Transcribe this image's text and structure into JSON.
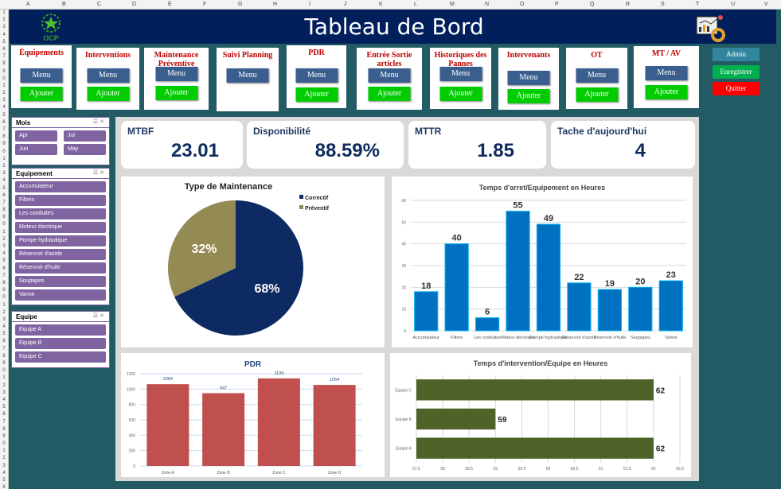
{
  "sheet": {
    "columns": [
      "A",
      "B",
      "C",
      "D",
      "E",
      "F",
      "G",
      "H",
      "I",
      "J",
      "K",
      "L",
      "M",
      "N",
      "O",
      "P",
      "Q",
      "R",
      "S",
      "T",
      "U",
      "V"
    ]
  },
  "header": {
    "title": "Tableau de Bord",
    "logo_text": "OCP",
    "logo_icon": "ocp-star-logo",
    "dashboard_icon": "dashboard-chart-icon"
  },
  "nav": [
    {
      "title": "Équipements",
      "menu": "Menu",
      "add": "Ajouter"
    },
    {
      "title": "Interventions",
      "menu": "Menu",
      "add": "Ajouter"
    },
    {
      "title": "Maintenance Préventive",
      "menu": "Menu",
      "add": "Ajouter"
    },
    {
      "title": "Suivi Planning",
      "menu": "Menu"
    },
    {
      "title": "PDR",
      "menu": "Menu",
      "add": "Ajouter"
    },
    {
      "title": "Entrée Sortie articles",
      "menu": "Menu",
      "add": "Ajouter"
    },
    {
      "title": "Historiques des Pannes",
      "menu": "Menu",
      "add": "Ajouter"
    },
    {
      "title": "Intervenants",
      "menu": "Menu",
      "add": "Ajouter"
    },
    {
      "title": "OT",
      "menu": "Menu",
      "add": "Ajouter"
    },
    {
      "title": "MT / AV",
      "menu": "Menu",
      "add": "Ajouter"
    }
  ],
  "side_buttons": {
    "admin": "Admin",
    "save": "Enregistrer",
    "quit": "Quitter",
    "colors": {
      "admin": "#31859c",
      "save": "#00b050",
      "quit": "#ff0000"
    }
  },
  "slicers": {
    "mois": {
      "title": "Mois",
      "items": [
        "Apr",
        "Jul",
        "Jun",
        "May"
      ]
    },
    "equipement": {
      "title": "Equipement",
      "items": [
        "Accumulateur",
        "Filtres",
        "Les conduites",
        "Moteur électrique",
        "Pompe hydraulique",
        "Réservoir d'azote",
        "Réservoir d'huile",
        "Soupapes",
        "Vanne"
      ]
    },
    "equipe": {
      "title": "Equipe",
      "items": [
        "Equipe A",
        "Equipe B",
        "Equipe C"
      ]
    }
  },
  "kpis": [
    {
      "label": "MTBF",
      "value": "23.01"
    },
    {
      "label": "Disponibilité",
      "value": "88.59%"
    },
    {
      "label": "MTTR",
      "value": "1.85"
    },
    {
      "label": "Tache d'aujourd'hui",
      "value": "4"
    }
  ],
  "chart_data": [
    {
      "type": "pie",
      "title": "Type de Maintenance",
      "categories": [
        "Correctif",
        "Préventif"
      ],
      "values": [
        68,
        32
      ],
      "labels": [
        "68%",
        "32%"
      ],
      "colors": [
        "#0e2a63",
        "#948a54"
      ],
      "legend": "top-right"
    },
    {
      "type": "bar",
      "title": "Temps d'arret/Equipement en Heures",
      "categories": [
        "Accumulateur",
        "Filtres",
        "Les conduites",
        "Moteur électrique",
        "Pompe hydraulique",
        "Réservoir d'azote",
        "Réservoir d'huile",
        "Soupapes",
        "Vanne"
      ],
      "values": [
        18,
        40,
        6,
        55,
        49,
        22,
        19,
        20,
        23
      ],
      "ylim": [
        0,
        60
      ],
      "yticks": [
        0,
        10,
        20,
        30,
        40,
        50,
        60
      ],
      "color": "#0070c0",
      "grid": true
    },
    {
      "type": "bar",
      "title": "PDR",
      "categories": [
        "Zone A",
        "Zone B",
        "Zone C",
        "Zone D"
      ],
      "values": [
        1064,
        947,
        1139,
        1054
      ],
      "ylim": [
        0,
        1200
      ],
      "yticks": [
        0,
        200,
        400,
        600,
        800,
        1000,
        1200
      ],
      "color": "#c0504d",
      "grid": true
    },
    {
      "type": "bar",
      "orientation": "horizontal",
      "title": "Temps d'intervention/Equipe en Heures",
      "categories": [
        "Equipe A",
        "Equipe B",
        "Equipe C"
      ],
      "values": [
        62,
        59,
        62
      ],
      "xlim": [
        57.5,
        62.5
      ],
      "xticks": [
        57.5,
        58,
        58.5,
        59,
        59.5,
        60,
        60.5,
        61,
        61.5,
        62,
        62.5
      ],
      "color": "#4f6228",
      "grid": true
    }
  ]
}
